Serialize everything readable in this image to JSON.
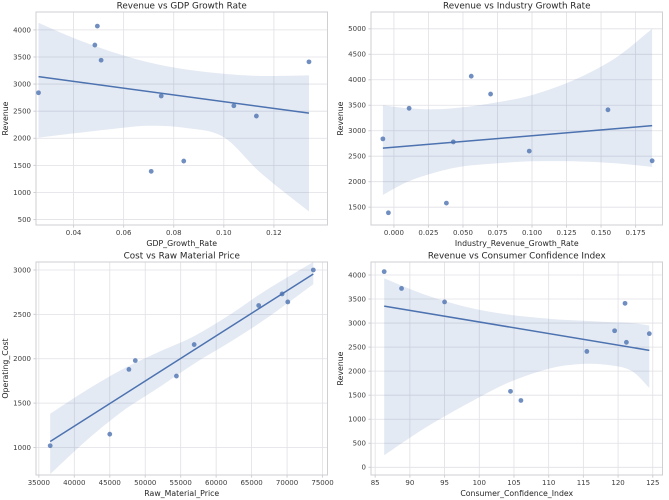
{
  "figure": {
    "background": "#ffffff",
    "accent_color": "#4c72b0",
    "band_opacity": 0.15,
    "grid_color": "#e0e0e6",
    "spine_color": "#cfcfd4",
    "title_color": "#262626",
    "label_color": "#262626",
    "tick_color": "#3d3d3d"
  },
  "chart_data": [
    {
      "type": "scatter",
      "title": "Revenue vs GDP Growth Rate",
      "xlabel": "GDP_Growth_Rate",
      "ylabel": "Revenue",
      "x": [
        0.026,
        0.0495,
        0.0485,
        0.051,
        0.075,
        0.071,
        0.084,
        0.104,
        0.113,
        0.134
      ],
      "y": [
        2840,
        4070,
        3720,
        3440,
        2780,
        1390,
        1580,
        2600,
        2410,
        3410
      ],
      "trend": {
        "x": [
          0.026,
          0.134
        ],
        "y": [
          3137,
          2464
        ]
      },
      "band": {
        "x": [
          0.026,
          0.04,
          0.055,
          0.07,
          0.085,
          0.1,
          0.115,
          0.134
        ],
        "upper": [
          4130,
          3850,
          3600,
          3400,
          3270,
          3190,
          3150,
          3160
        ],
        "lower": [
          2010,
          2090,
          2170,
          2230,
          2190,
          2020,
          1350,
          650
        ]
      },
      "xlim": [
        0.025,
        0.1414
      ],
      "ylim": [
        400,
        4330
      ],
      "xticks": {
        "values": [
          0.04,
          0.06,
          0.08,
          0.1,
          0.12
        ],
        "labels": [
          "0.04",
          "0.06",
          "0.08",
          "0.10",
          "0.12"
        ]
      },
      "yticks": {
        "values": [
          500,
          1000,
          1500,
          2000,
          2500,
          3000,
          3500,
          4000
        ],
        "labels": [
          "500",
          "1000",
          "1500",
          "2000",
          "2500",
          "3000",
          "3500",
          "4000"
        ]
      },
      "grid": true,
      "legend": null
    },
    {
      "type": "scatter",
      "title": "Revenue vs Industry Growth Rate",
      "xlabel": "Industry_Revenue_Growth_Rate",
      "ylabel": "Revenue",
      "x": [
        -0.008,
        -0.004,
        0.011,
        0.038,
        0.043,
        0.056,
        0.07,
        0.098,
        0.155,
        0.187
      ],
      "y": [
        2840,
        1390,
        3440,
        1580,
        2780,
        4070,
        3720,
        2600,
        3410,
        2410
      ],
      "trend": {
        "x": [
          -0.008,
          0.187
        ],
        "y": [
          2658,
          3100
        ]
      },
      "band": {
        "x": [
          -0.008,
          0.01,
          0.03,
          0.05,
          0.075,
          0.1,
          0.13,
          0.16,
          0.187
        ],
        "upper": [
          3500,
          3440,
          3420,
          3460,
          3560,
          3700,
          3990,
          4420,
          5000
        ],
        "lower": [
          1740,
          2000,
          2180,
          2300,
          2360,
          2400,
          2400,
          2360,
          2290
        ]
      },
      "xlim": [
        -0.0166,
        0.1945
      ],
      "ylim": [
        1150,
        5330
      ],
      "xticks": {
        "values": [
          0.0,
          0.025,
          0.05,
          0.075,
          0.1,
          0.125,
          0.15,
          0.175
        ],
        "labels": [
          "0.000",
          "0.025",
          "0.050",
          "0.075",
          "0.100",
          "0.125",
          "0.150",
          "0.175"
        ]
      },
      "yticks": {
        "values": [
          1500,
          2000,
          2500,
          3000,
          3500,
          4000,
          4500,
          5000
        ],
        "labels": [
          "1500",
          "2000",
          "2500",
          "3000",
          "3500",
          "4000",
          "4500",
          "5000"
        ]
      },
      "grid": true,
      "legend": null
    },
    {
      "type": "scatter",
      "title": "Cost vs Raw Material Price",
      "xlabel": "Raw_Material_Price",
      "ylabel": "Operating_Cost",
      "x": [
        36600,
        45000,
        47700,
        48600,
        54400,
        56900,
        66000,
        69300,
        70100,
        73700
      ],
      "y": [
        1020,
        1150,
        1880,
        1980,
        1805,
        2160,
        2600,
        2730,
        2640,
        3000
      ],
      "trend": {
        "x": [
          36600,
          73700
        ],
        "y": [
          1067,
          2955
        ]
      },
      "band": {
        "x": [
          36600,
          42000,
          47000,
          52000,
          57000,
          62000,
          67000,
          73700
        ],
        "upper": [
          1380,
          1660,
          1890,
          2080,
          2260,
          2500,
          2770,
          3090
        ],
        "lower": [
          700,
          1100,
          1420,
          1680,
          1950,
          2190,
          2450,
          2840
        ]
      },
      "xlim": [
        34600,
        75700
      ],
      "ylim": [
        690,
        3090
      ],
      "xticks": {
        "values": [
          35000,
          40000,
          45000,
          50000,
          55000,
          60000,
          65000,
          70000,
          75000
        ],
        "labels": [
          "35000",
          "40000",
          "45000",
          "50000",
          "55000",
          "60000",
          "65000",
          "70000",
          "75000"
        ]
      },
      "yticks": {
        "values": [
          1000,
          1500,
          2000,
          2500,
          3000
        ],
        "labels": [
          "1000",
          "1500",
          "2000",
          "2500",
          "3000"
        ]
      },
      "grid": true,
      "legend": null
    },
    {
      "type": "scatter",
      "title": "Revenue vs Consumer Confidence Index",
      "xlabel": "Consumer_Confidence_Index",
      "ylabel": "Revenue",
      "x": [
        86.3,
        88.8,
        95.0,
        104.5,
        106.0,
        115.5,
        119.5,
        121.0,
        121.2,
        124.5
      ],
      "y": [
        4070,
        3720,
        3440,
        1580,
        1390,
        2410,
        2840,
        3410,
        2600,
        2780
      ],
      "trend": {
        "x": [
          86.3,
          124.5
        ],
        "y": [
          3352,
          2433
        ]
      },
      "band": {
        "x": [
          86.3,
          92,
          98,
          104,
          110,
          115,
          119,
          122,
          124.5
        ],
        "upper": [
          3930,
          3600,
          3340,
          3180,
          3090,
          3050,
          3020,
          3000,
          2950
        ],
        "lower": [
          250,
          800,
          1300,
          1750,
          2050,
          2150,
          2120,
          2000,
          1650
        ]
      },
      "xlim": [
        84.4,
        126.4
      ],
      "ylim": [
        -160,
        4270
      ],
      "xticks": {
        "values": [
          85,
          90,
          95,
          100,
          105,
          110,
          115,
          120,
          125
        ],
        "labels": [
          "85",
          "90",
          "95",
          "100",
          "105",
          "110",
          "115",
          "120",
          "125"
        ]
      },
      "yticks": {
        "values": [
          0,
          500,
          1000,
          1500,
          2000,
          2500,
          3000,
          3500,
          4000
        ],
        "labels": [
          "0",
          "500",
          "1000",
          "1500",
          "2000",
          "2500",
          "3000",
          "3500",
          "4000"
        ]
      },
      "grid": true,
      "legend": null
    }
  ]
}
